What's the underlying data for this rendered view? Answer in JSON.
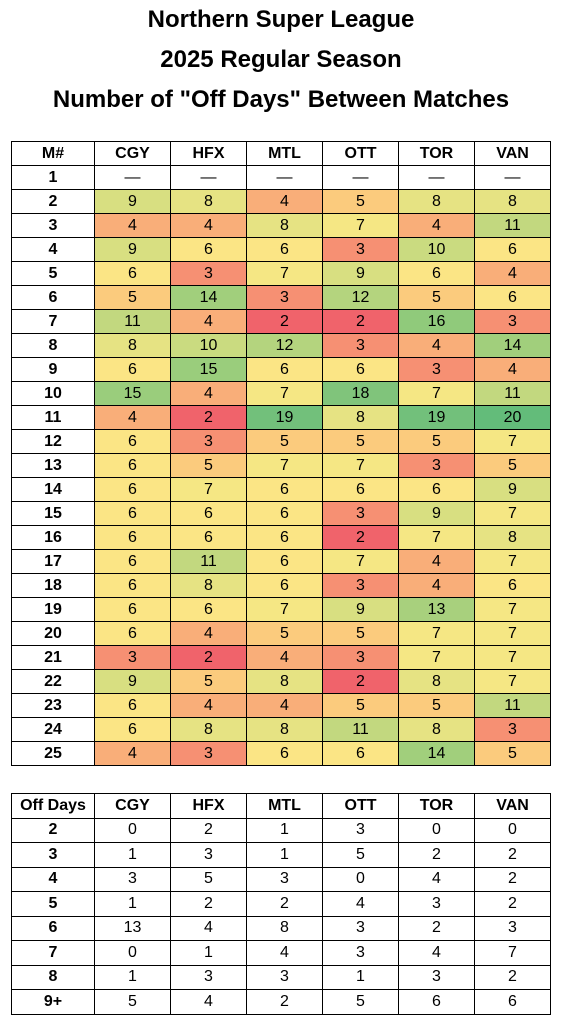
{
  "title": {
    "line1": "Northern Super League",
    "line2": "2025 Regular Season",
    "line3": "Number of \"Off Days\" Between Matches"
  },
  "table1": {
    "headers": [
      "M#",
      "CGY",
      "HFX",
      "MTL",
      "OTT",
      "TOR",
      "VAN"
    ],
    "rows": [
      {
        "m": "1",
        "v": [
          "—",
          "—",
          "—",
          "—",
          "—",
          "—"
        ]
      },
      {
        "m": "2",
        "v": [
          "9",
          "8",
          "4",
          "5",
          "8",
          "8"
        ]
      },
      {
        "m": "3",
        "v": [
          "4",
          "4",
          "8",
          "7",
          "4",
          "11"
        ]
      },
      {
        "m": "4",
        "v": [
          "9",
          "6",
          "6",
          "3",
          "10",
          "6"
        ]
      },
      {
        "m": "5",
        "v": [
          "6",
          "3",
          "7",
          "9",
          "6",
          "4"
        ]
      },
      {
        "m": "6",
        "v": [
          "5",
          "14",
          "3",
          "12",
          "5",
          "6"
        ]
      },
      {
        "m": "7",
        "v": [
          "11",
          "4",
          "2",
          "2",
          "16",
          "3"
        ]
      },
      {
        "m": "8",
        "v": [
          "8",
          "10",
          "12",
          "3",
          "4",
          "14"
        ]
      },
      {
        "m": "9",
        "v": [
          "6",
          "15",
          "6",
          "6",
          "3",
          "4"
        ]
      },
      {
        "m": "10",
        "v": [
          "15",
          "4",
          "7",
          "18",
          "7",
          "11"
        ]
      },
      {
        "m": "11",
        "v": [
          "4",
          "2",
          "19",
          "8",
          "19",
          "20"
        ]
      },
      {
        "m": "12",
        "v": [
          "6",
          "3",
          "5",
          "5",
          "5",
          "7"
        ]
      },
      {
        "m": "13",
        "v": [
          "6",
          "5",
          "7",
          "7",
          "3",
          "5"
        ]
      },
      {
        "m": "14",
        "v": [
          "6",
          "7",
          "6",
          "6",
          "6",
          "9"
        ]
      },
      {
        "m": "15",
        "v": [
          "6",
          "6",
          "6",
          "3",
          "9",
          "7"
        ]
      },
      {
        "m": "16",
        "v": [
          "6",
          "6",
          "6",
          "2",
          "7",
          "8"
        ]
      },
      {
        "m": "17",
        "v": [
          "6",
          "11",
          "6",
          "7",
          "4",
          "7"
        ]
      },
      {
        "m": "18",
        "v": [
          "6",
          "8",
          "6",
          "3",
          "4",
          "6"
        ]
      },
      {
        "m": "19",
        "v": [
          "6",
          "6",
          "7",
          "9",
          "13",
          "7"
        ]
      },
      {
        "m": "20",
        "v": [
          "6",
          "4",
          "5",
          "5",
          "7",
          "7"
        ]
      },
      {
        "m": "21",
        "v": [
          "3",
          "2",
          "4",
          "3",
          "7",
          "7"
        ]
      },
      {
        "m": "22",
        "v": [
          "9",
          "5",
          "8",
          "2",
          "8",
          "7"
        ]
      },
      {
        "m": "23",
        "v": [
          "6",
          "4",
          "4",
          "5",
          "5",
          "11"
        ]
      },
      {
        "m": "24",
        "v": [
          "6",
          "8",
          "8",
          "11",
          "8",
          "3"
        ]
      },
      {
        "m": "25",
        "v": [
          "4",
          "3",
          "6",
          "6",
          "14",
          "5"
        ]
      }
    ]
  },
  "table2": {
    "headers": [
      "Off Days",
      "CGY",
      "HFX",
      "MTL",
      "OTT",
      "TOR",
      "VAN"
    ],
    "rows": [
      {
        "d": "2",
        "v": [
          "0",
          "2",
          "1",
          "3",
          "0",
          "0"
        ]
      },
      {
        "d": "3",
        "v": [
          "1",
          "3",
          "1",
          "5",
          "2",
          "2"
        ]
      },
      {
        "d": "4",
        "v": [
          "3",
          "5",
          "3",
          "0",
          "4",
          "2"
        ]
      },
      {
        "d": "5",
        "v": [
          "1",
          "2",
          "2",
          "4",
          "3",
          "2"
        ]
      },
      {
        "d": "6",
        "v": [
          "13",
          "4",
          "8",
          "3",
          "2",
          "3"
        ]
      },
      {
        "d": "7",
        "v": [
          "0",
          "1",
          "4",
          "3",
          "4",
          "7"
        ]
      },
      {
        "d": "8",
        "v": [
          "1",
          "3",
          "3",
          "1",
          "3",
          "2"
        ]
      },
      {
        "d": "9+",
        "v": [
          "5",
          "4",
          "2",
          "5",
          "6",
          "6"
        ]
      }
    ]
  },
  "heat_colors": {
    "2": "#f0636b",
    "3": "#f69073",
    "4": "#f9ae79",
    "5": "#fbcb7d",
    "6": "#fbe585",
    "7": "#f5e784",
    "8": "#e6e383",
    "9": "#d8df81",
    "10": "#cadb80",
    "11": "#c2d87f",
    "12": "#b4d47e",
    "13": "#a8d07d",
    "14": "#a1cf7c",
    "15": "#9acd7c",
    "16": "#90ca7b",
    "18": "#80c47b",
    "19": "#72c07b",
    "20": "#63bc7a"
  }
}
